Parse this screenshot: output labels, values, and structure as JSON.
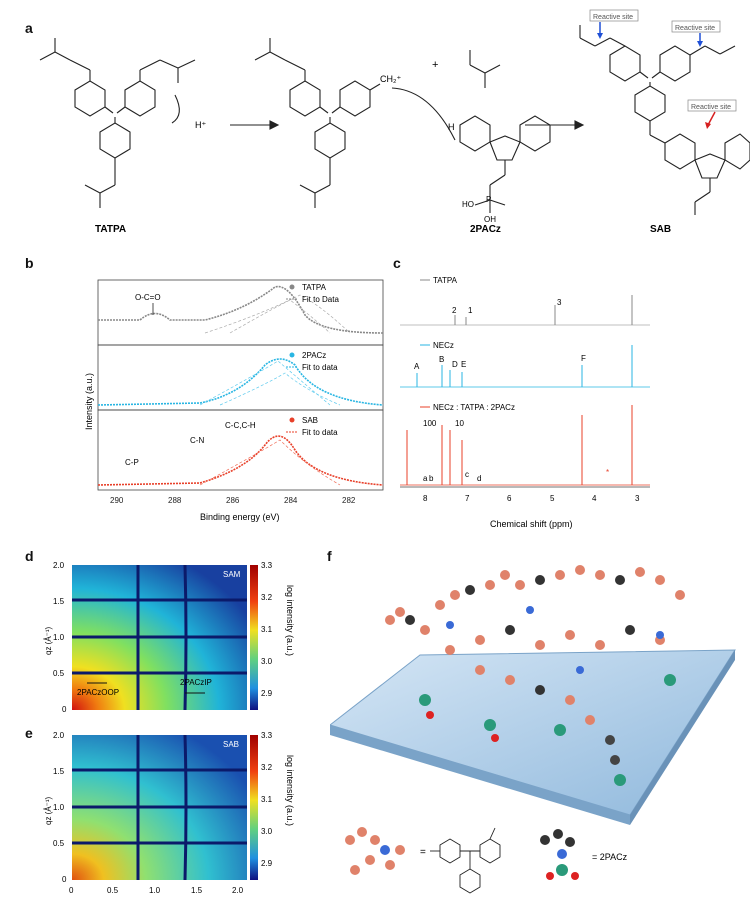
{
  "panel_a": {
    "letter": "a",
    "tatpa_label": "TATPA",
    "nh_label": "N",
    "h_plus": "H⁺",
    "plus_sign": "+",
    "ch2_plus": "CH₂⁺",
    "h_label": "H",
    "o_label": "O",
    "oh_label": "H",
    "pacz_label": "2PACz",
    "sab_label": "SAB",
    "ho_label": "HO",
    "p_label": "P",
    "oh2_label": "OH",
    "reactive_site": "Reactive site"
  },
  "panel_b": {
    "letter": "b",
    "ylabel": "Intensity (a.u.)",
    "xlabel": "Binding energy (eV)",
    "x_ticks": [
      "290",
      "288",
      "286",
      "284",
      "282"
    ],
    "sub1": {
      "legend_data": "TATPA",
      "legend_fit": "Fit to Data",
      "annotation": "O-C=O",
      "color": "#888888"
    },
    "sub2": {
      "legend_data": "2PACz",
      "legend_fit": "Fit to data",
      "color": "#29b6e3"
    },
    "sub3": {
      "legend_data": "SAB",
      "legend_fit": "Fit to data",
      "color": "#e8402a",
      "ann_cp": "C-P",
      "ann_cn": "C-N",
      "ann_cc": "C-C,C-H"
    }
  },
  "panel_c": {
    "letter": "c",
    "xlabel": "Chemical shift (ppm)",
    "x_ticks": [
      "8",
      "7",
      "6",
      "5",
      "4",
      "3"
    ],
    "sub1": {
      "legend": "TATPA",
      "peaks": [
        "2",
        "1",
        "3"
      ],
      "color": "#888888"
    },
    "sub2": {
      "legend": "NECz",
      "peaks": [
        "A",
        "B",
        "D",
        "E",
        "F"
      ],
      "color": "#29b6e3"
    },
    "sub3": {
      "legend": "NECz : TATPA : 2PACz",
      "ratio": [
        "100",
        "10"
      ],
      "peaks": [
        "a",
        "b",
        "c",
        "d",
        "*"
      ],
      "color": "#e8402a"
    }
  },
  "panel_d": {
    "letter": "d",
    "ylabel": "qz (Å⁻¹)",
    "tag": "SAM",
    "oop": "2PACzOOP",
    "ip": "2PACzIP",
    "y_ticks": [
      "2.0",
      "1.5",
      "1.0",
      "0.5",
      "0"
    ],
    "colorbar_ticks": [
      "3.3",
      "3.2",
      "3.1",
      "3.0",
      "2.9"
    ],
    "colorbar_label": "log intensity (a.u.)"
  },
  "panel_e": {
    "letter": "e",
    "ylabel": "qz (Å⁻¹)",
    "tag": "SAB",
    "y_ticks": [
      "2.0",
      "1.5",
      "1.0",
      "0.5",
      "0"
    ],
    "x_ticks": [
      "0",
      "0.5",
      "1.0",
      "1.5",
      "2.0"
    ],
    "colorbar_ticks": [
      "3.3",
      "3.2",
      "3.1",
      "3.0",
      "2.9"
    ],
    "colorbar_label": "log intensity (a.u.)"
  },
  "panel_f": {
    "letter": "f",
    "eq1": "=",
    "eq2": "= 2PACz"
  }
}
